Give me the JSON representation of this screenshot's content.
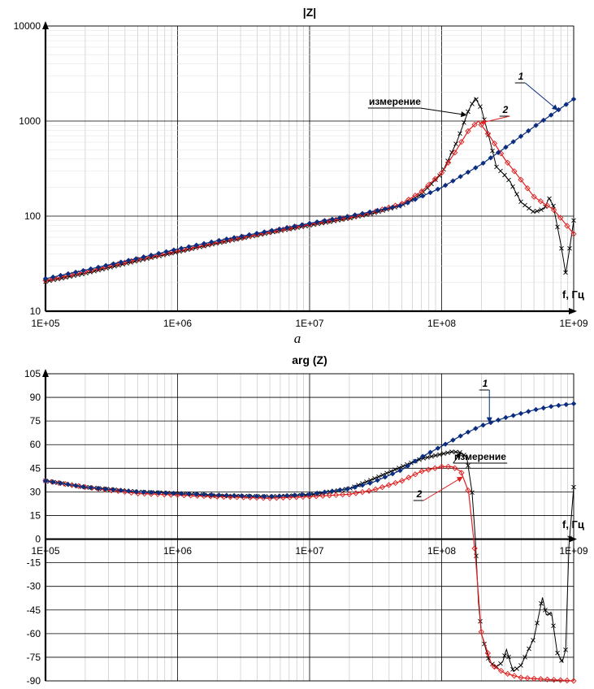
{
  "chart_data": [
    {
      "type": "line",
      "title": "|Z|",
      "panel_label": "a",
      "xscale": "log",
      "yscale": "log",
      "xlim": [
        100000,
        1000000000
      ],
      "ylim": [
        10,
        10000
      ],
      "x_ticks": [
        "1E+05",
        "1E+06",
        "1E+07",
        "1E+08",
        "1E+09"
      ],
      "y_ticks": [
        "10",
        "100",
        "1000",
        "10000"
      ],
      "x_axis_label": "f, Гц",
      "grid": true,
      "series": [
        {
          "name": "измерение",
          "color": "#000000",
          "marker": "x",
          "points": [
            [
              100000.0,
              20.5
            ],
            [
              200000.0,
              25
            ],
            [
              500000.0,
              34
            ],
            [
              1000000.0,
              42
            ],
            [
              2000000.0,
              52
            ],
            [
              5000000.0,
              67
            ],
            [
              10000000.0,
              80
            ],
            [
              20000000.0,
              95
            ],
            [
              30000000.0,
              107
            ],
            [
              50000000.0,
              130
            ],
            [
              70000000.0,
              170
            ],
            [
              100000000.0,
              280
            ],
            [
              130000000.0,
              600
            ],
            [
              160000000.0,
              1300
            ],
            [
              180000000.0,
              1750
            ],
            [
              200000000.0,
              1350
            ],
            [
              230000000.0,
              650
            ],
            [
              260000000.0,
              330
            ],
            [
              300000000.0,
              270
            ],
            [
              330000000.0,
              230
            ],
            [
              400000000.0,
              140
            ],
            [
              500000000.0,
              110
            ],
            [
              600000000.0,
              120
            ],
            [
              650000000.0,
              155
            ],
            [
              700000000.0,
              130
            ],
            [
              800000000.0,
              50
            ],
            [
              870000000.0,
              25
            ],
            [
              930000000.0,
              45
            ],
            [
              1000000000.0,
              90
            ]
          ]
        },
        {
          "name": "2",
          "color": "#e02020",
          "marker": "diamond-open",
          "points": [
            [
              100000.0,
              21
            ],
            [
              200000.0,
              26
            ],
            [
              500000.0,
              35
            ],
            [
              1000000.0,
              43
            ],
            [
              2000000.0,
              53
            ],
            [
              5000000.0,
              68
            ],
            [
              10000000.0,
              82
            ],
            [
              20000000.0,
              97
            ],
            [
              30000000.0,
              110
            ],
            [
              50000000.0,
              135
            ],
            [
              70000000.0,
              180
            ],
            [
              100000000.0,
              285
            ],
            [
              130000000.0,
              500
            ],
            [
              160000000.0,
              800
            ],
            [
              190000000.0,
              1000
            ],
            [
              230000000.0,
              700
            ],
            [
              300000000.0,
              400
            ],
            [
              400000000.0,
              240
            ],
            [
              500000000.0,
              160
            ],
            [
              600000000.0,
              135
            ],
            [
              700000000.0,
              118
            ],
            [
              800000000.0,
              95
            ],
            [
              1000000000.0,
              65
            ]
          ]
        },
        {
          "name": "1",
          "color": "#0a2d80",
          "marker": "diamond",
          "points": [
            [
              100000.0,
              22
            ],
            [
              200000.0,
              27
            ],
            [
              500000.0,
              36
            ],
            [
              1000000.0,
              45
            ],
            [
              2000000.0,
              55
            ],
            [
              5000000.0,
              70
            ],
            [
              10000000.0,
              84
            ],
            [
              20000000.0,
              100
            ],
            [
              30000000.0,
              112
            ],
            [
              50000000.0,
              130
            ],
            [
              70000000.0,
              160
            ],
            [
              100000000.0,
              200
            ],
            [
              200000000.0,
              350
            ],
            [
              300000000.0,
              520
            ],
            [
              500000000.0,
              870
            ],
            [
              700000000.0,
              1200
            ],
            [
              1000000000.0,
              1700
            ]
          ]
        }
      ],
      "annotations": [
        {
          "text": "измерение",
          "series": "измерение"
        },
        {
          "text": "1",
          "series": "1"
        },
        {
          "text": "2",
          "series": "2"
        }
      ]
    },
    {
      "type": "line",
      "title": "arg (Z)",
      "xscale": "log",
      "xlim": [
        100000,
        1000000000
      ],
      "ylim": [
        -90,
        105
      ],
      "x_ticks": [
        "1E+05",
        "1E+06",
        "1E+07",
        "1E+08",
        "1E+09"
      ],
      "y_ticks": [
        "105",
        "90",
        "75",
        "60",
        "45",
        "30",
        "15",
        "0",
        "-15",
        "-30",
        "-45",
        "-60",
        "-75",
        "-90"
      ],
      "x_axis_label": "f, Гц",
      "grid": true,
      "series": [
        {
          "name": "измерение",
          "color": "#000000",
          "marker": "x",
          "points": [
            [
              100000.0,
              37
            ],
            [
              200000.0,
              33
            ],
            [
              500000.0,
              30
            ],
            [
              1000000.0,
              29
            ],
            [
              2000000.0,
              27.5
            ],
            [
              5000000.0,
              27
            ],
            [
              10000000.0,
              28
            ],
            [
              20000000.0,
              32
            ],
            [
              30000000.0,
              38
            ],
            [
              50000000.0,
              46
            ],
            [
              70000000.0,
              51
            ],
            [
              100000000.0,
              54
            ],
            [
              120000000.0,
              55.5
            ],
            [
              140000000.0,
              55
            ],
            [
              155000000.0,
              52
            ],
            [
              170000000.0,
              30
            ],
            [
              180000000.0,
              0
            ],
            [
              190000000.0,
              -40
            ],
            [
              200000000.0,
              -60
            ],
            [
              230000000.0,
              -78
            ],
            [
              260000000.0,
              -81
            ],
            [
              290000000.0,
              -78
            ],
            [
              310000000.0,
              -70
            ],
            [
              330000000.0,
              -78
            ],
            [
              350000000.0,
              -84
            ],
            [
              400000000.0,
              -80
            ],
            [
              500000000.0,
              -63
            ],
            [
              580000000.0,
              -37
            ],
            [
              620000000.0,
              -48
            ],
            [
              680000000.0,
              -47
            ],
            [
              750000000.0,
              -72
            ],
            [
              820000000.0,
              -78
            ],
            [
              870000000.0,
              -70
            ],
            [
              920000000.0,
              -5
            ],
            [
              1000000000.0,
              33
            ]
          ]
        },
        {
          "name": "2",
          "color": "#e02020",
          "marker": "diamond-open",
          "points": [
            [
              100000.0,
              37
            ],
            [
              200000.0,
              33
            ],
            [
              500000.0,
              29
            ],
            [
              1000000.0,
              28
            ],
            [
              2000000.0,
              27
            ],
            [
              5000000.0,
              26
            ],
            [
              10000000.0,
              27
            ],
            [
              20000000.0,
              28.5
            ],
            [
              30000000.0,
              31
            ],
            [
              50000000.0,
              37
            ],
            [
              70000000.0,
              43
            ],
            [
              100000000.0,
              46
            ],
            [
              120000000.0,
              46
            ],
            [
              140000000.0,
              43
            ],
            [
              160000000.0,
              30
            ],
            [
              180000000.0,
              -10
            ],
            [
              200000000.0,
              -60
            ],
            [
              240000000.0,
              -80
            ],
            [
              300000000.0,
              -85
            ],
            [
              400000000.0,
              -88
            ],
            [
              600000000.0,
              -89
            ],
            [
              1000000000.0,
              -90
            ]
          ]
        },
        {
          "name": "1",
          "color": "#0a2d80",
          "marker": "diamond",
          "points": [
            [
              100000.0,
              37
            ],
            [
              200000.0,
              33
            ],
            [
              500000.0,
              30
            ],
            [
              1000000.0,
              29
            ],
            [
              2000000.0,
              28
            ],
            [
              5000000.0,
              27
            ],
            [
              10000000.0,
              28.5
            ],
            [
              20000000.0,
              32
            ],
            [
              30000000.0,
              36
            ],
            [
              50000000.0,
              44
            ],
            [
              70000000.0,
              52
            ],
            [
              100000000.0,
              59
            ],
            [
              150000000.0,
              67
            ],
            [
              200000000.0,
              72
            ],
            [
              300000000.0,
              77
            ],
            [
              500000000.0,
              82
            ],
            [
              700000000.0,
              84.5
            ],
            [
              1000000000.0,
              86
            ]
          ]
        }
      ],
      "annotations": [
        {
          "text": "измерение",
          "series": "измерение"
        },
        {
          "text": "1",
          "series": "1"
        },
        {
          "text": "2",
          "series": "2"
        }
      ]
    }
  ]
}
